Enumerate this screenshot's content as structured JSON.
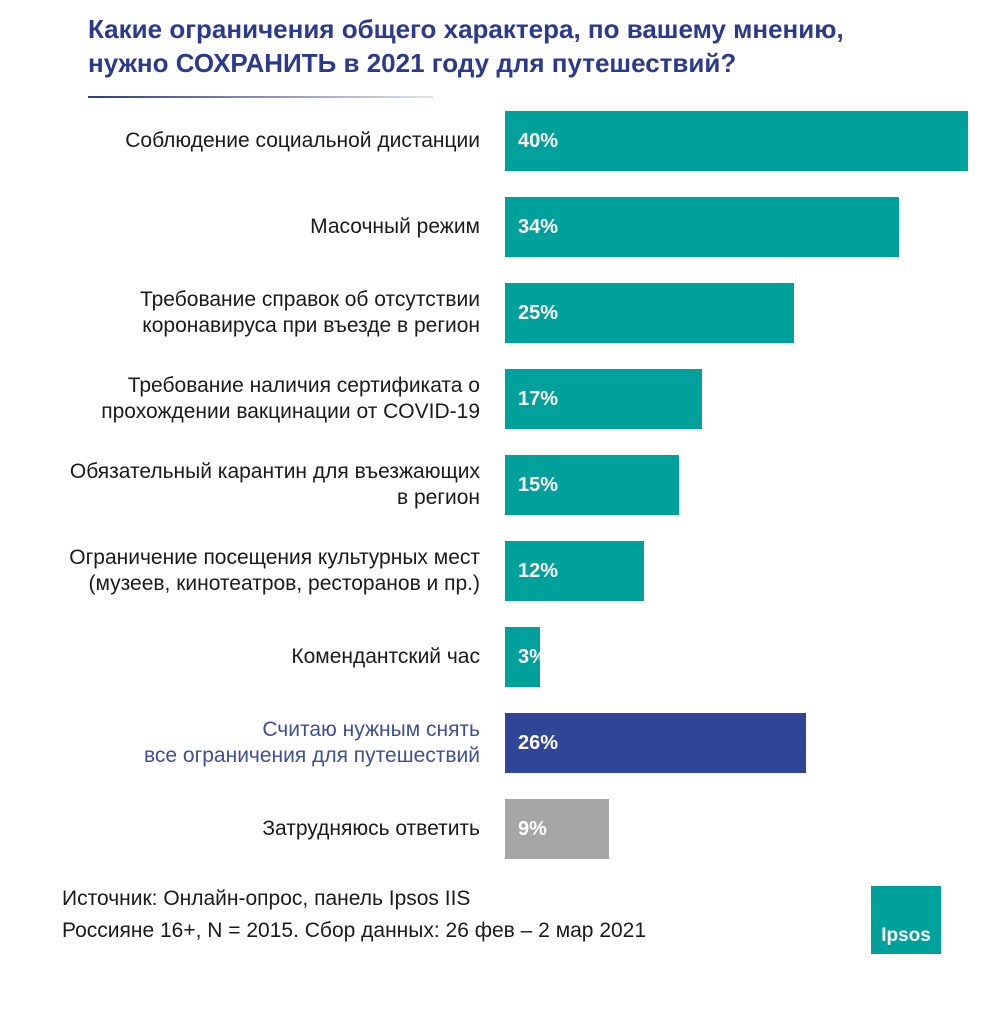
{
  "chart_data": {
    "type": "hbar",
    "title": "Какие ограничения общего характера, по вашему мнению,\nнужно СОХРАНИТЬ в 2021 году для путешествий?",
    "categories": [
      "Соблюдение социальной дистанции",
      "Масочный режим",
      "Требование справок об отсутствии\nкоронавируса при въезде в регион",
      "Требование наличия сертификата о\nпрохождении вакцинации от COVID-19",
      "Обязательный карантин для въезжающих\nв регион",
      "Ограничение посещения культурных мест\n(музеев, кинотеатров, ресторанов и пр.)",
      "Комендантский час",
      "Считаю нужным снять\nвсе ограничения для путешествий",
      "Затрудняюсь ответить"
    ],
    "values": [
      40,
      34,
      25,
      17,
      15,
      12,
      3,
      26,
      9
    ],
    "value_labels": [
      "40%",
      "34%",
      "25%",
      "17%",
      "15%",
      "12%",
      "3%",
      "26%",
      "9%"
    ],
    "colors": [
      "#00a19b",
      "#00a19b",
      "#00a19b",
      "#00a19b",
      "#00a19b",
      "#00a19b",
      "#00a19b",
      "#2e4598",
      "#a6a6a6"
    ],
    "category_colors": [
      "#1a1a1a",
      "#1a1a1a",
      "#1a1a1a",
      "#1a1a1a",
      "#1a1a1a",
      "#1a1a1a",
      "#1a1a1a",
      "#3f4f96",
      "#1a1a1a"
    ],
    "source": [
      "Источник: Онлайн-опрос, панель Ipsos IIS",
      "Россияне 16+, N = 2015. Сбор данных: 26 фев – 2 мар 2021"
    ],
    "logo": "Ipsos"
  }
}
